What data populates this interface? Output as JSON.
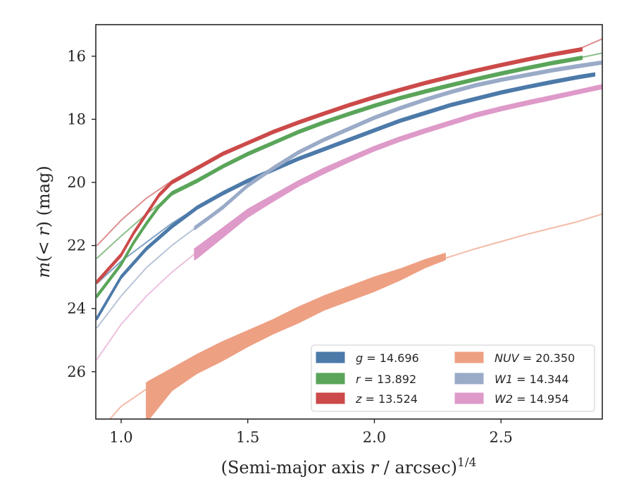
{
  "chart_data": {
    "type": "line",
    "xlabel": "(Semi-major axis r / arcsec)",
    "xlabel_math": {
      "pre": "(Semi-major axis ",
      "var": "r",
      "post": " / arcsec)",
      "sup": "1/4"
    },
    "ylabel": "m(< r) (mag)",
    "ylabel_math": {
      "m": "m",
      "open": "(",
      "lt": "< ",
      "r": "r",
      "close": ")",
      "unit": " (mag)"
    },
    "xlim": [
      0.9,
      2.9
    ],
    "ylim": [
      27.5,
      15.0
    ],
    "y_inverted": true,
    "xticks": [
      1.0,
      1.5,
      2.0,
      2.5
    ],
    "xtick_labels": [
      "1.0",
      "1.5",
      "2.0",
      "2.5"
    ],
    "yticks": [
      16,
      18,
      20,
      22,
      24,
      26
    ],
    "ytick_labels": [
      "16",
      "18",
      "20",
      "22",
      "24",
      "26"
    ],
    "grid": false,
    "legend_position": "lower-right",
    "legend_columns": 2,
    "series": [
      {
        "name": "g = 14.696",
        "label_var": "g",
        "label_val": " = 14.696",
        "color": "#4c7aa9",
        "curve_color": "#4c7aa9",
        "model_x": [
          0.905,
          1.0,
          1.1,
          1.2,
          1.3,
          1.4,
          1.5,
          1.6,
          1.7,
          1.8,
          1.9,
          2.0,
          2.1,
          2.2,
          2.3,
          2.4,
          2.5,
          2.6,
          2.7,
          2.8,
          2.87
        ],
        "model_y": [
          23.2,
          22.5,
          21.9,
          21.3,
          20.8,
          20.35,
          19.95,
          19.6,
          19.25,
          18.95,
          18.65,
          18.35,
          18.05,
          17.8,
          17.55,
          17.35,
          17.15,
          16.98,
          16.82,
          16.67,
          16.58
        ],
        "band_x": [
          0.905,
          1.0,
          1.1,
          1.2,
          1.3,
          1.4,
          1.5,
          1.6,
          1.7,
          1.8,
          1.9,
          2.0,
          2.1,
          2.2,
          2.3,
          2.4,
          2.5,
          2.6,
          2.7,
          2.8,
          2.87
        ],
        "band_y": [
          24.3,
          23.0,
          22.1,
          21.4,
          20.8,
          20.35,
          19.95,
          19.6,
          19.25,
          18.95,
          18.65,
          18.35,
          18.05,
          17.8,
          17.55,
          17.35,
          17.15,
          16.98,
          16.82,
          16.67,
          16.58
        ],
        "band_hw": 0.05
      },
      {
        "name": "r = 13.892",
        "label_var": "r",
        "label_val": " = 13.892",
        "color": "#5aa55a",
        "curve_color": "#5aa55a",
        "model_x": [
          0.905,
          1.0,
          1.1,
          1.2,
          1.3,
          1.4,
          1.5,
          1.6,
          1.7,
          1.8,
          1.9,
          2.0,
          2.1,
          2.2,
          2.3,
          2.4,
          2.5,
          2.6,
          2.7,
          2.8,
          2.9
        ],
        "model_y": [
          22.4,
          21.7,
          21.0,
          20.4,
          19.95,
          19.5,
          19.1,
          18.75,
          18.4,
          18.1,
          17.83,
          17.57,
          17.33,
          17.12,
          16.92,
          16.73,
          16.55,
          16.38,
          16.22,
          16.07,
          15.9
        ],
        "band_x": [
          0.905,
          1.0,
          1.05,
          1.1,
          1.15,
          1.2,
          1.3,
          1.4,
          1.5,
          1.6,
          1.7,
          1.8,
          1.9,
          2.0,
          2.1,
          2.2,
          2.3,
          2.4,
          2.5,
          2.6,
          2.7,
          2.82
        ],
        "band_y": [
          23.6,
          22.6,
          21.9,
          21.3,
          20.75,
          20.35,
          19.95,
          19.5,
          19.1,
          18.75,
          18.4,
          18.1,
          17.83,
          17.57,
          17.33,
          17.12,
          16.92,
          16.73,
          16.55,
          16.38,
          16.22,
          16.05
        ],
        "band_hw": 0.05
      },
      {
        "name": "z = 13.524",
        "label_var": "z",
        "label_val": " = 13.524",
        "color": "#cc4a4a",
        "curve_color": "#d06060",
        "model_x": [
          0.905,
          1.0,
          1.1,
          1.2,
          1.3,
          1.4,
          1.5,
          1.6,
          1.7,
          1.8,
          1.9,
          2.0,
          2.1,
          2.2,
          2.3,
          2.4,
          2.5,
          2.6,
          2.7,
          2.8,
          2.9
        ],
        "model_y": [
          22.0,
          21.2,
          20.5,
          19.95,
          19.5,
          19.1,
          18.75,
          18.4,
          18.1,
          17.82,
          17.55,
          17.3,
          17.07,
          16.85,
          16.65,
          16.46,
          16.28,
          16.11,
          15.95,
          15.8,
          15.45
        ],
        "band_x": [
          0.905,
          1.0,
          1.05,
          1.1,
          1.15,
          1.2,
          1.3,
          1.4,
          1.5,
          1.6,
          1.7,
          1.8,
          1.9,
          2.0,
          2.1,
          2.2,
          2.3,
          2.4,
          2.5,
          2.6,
          2.7,
          2.82
        ],
        "band_y": [
          23.15,
          22.3,
          21.6,
          21.0,
          20.4,
          20.0,
          19.55,
          19.1,
          18.75,
          18.4,
          18.1,
          17.82,
          17.55,
          17.3,
          17.07,
          16.85,
          16.65,
          16.46,
          16.28,
          16.11,
          15.95,
          15.78
        ],
        "band_hw": 0.05
      },
      {
        "name": "NUV = 20.350",
        "label_var": "NUV",
        "label_val": " = 20.350",
        "color": "#eea083",
        "curve_color": "#eea083",
        "model_x": [
          0.9,
          1.0,
          1.2,
          1.4,
          1.6,
          1.8,
          2.0,
          2.2,
          2.4,
          2.6,
          2.8,
          2.9
        ],
        "model_y": [
          28.0,
          27.1,
          26.0,
          25.2,
          24.5,
          23.8,
          23.2,
          22.6,
          22.1,
          21.65,
          21.25,
          21.0
        ],
        "band_x": [
          1.1,
          1.11,
          1.2,
          1.3,
          1.4,
          1.5,
          1.6,
          1.7,
          1.8,
          1.9,
          2.0,
          2.1,
          2.2,
          2.28
        ],
        "band_lo": [
          27.5,
          27.5,
          26.6,
          26.05,
          25.65,
          25.2,
          24.8,
          24.45,
          24.05,
          23.75,
          23.45,
          23.1,
          22.7,
          22.45
        ],
        "band_hi": [
          26.35,
          26.3,
          25.9,
          25.45,
          25.05,
          24.7,
          24.35,
          23.95,
          23.6,
          23.3,
          23.0,
          22.75,
          22.45,
          22.25
        ]
      },
      {
        "name": "W1 = 14.344",
        "label_var": "W1",
        "label_val": " = 14.344",
        "color": "#9aabc8",
        "curve_color": "#9aabc8",
        "model_x": [
          0.905,
          1.0,
          1.1,
          1.2,
          1.3,
          1.4,
          1.5,
          1.6,
          1.7,
          1.8,
          1.9,
          2.0,
          2.1,
          2.2,
          2.3,
          2.4,
          2.5,
          2.6,
          2.7,
          2.8,
          2.9
        ],
        "model_y": [
          24.6,
          23.6,
          22.7,
          22.0,
          21.4,
          20.75,
          20.1,
          19.55,
          19.05,
          18.65,
          18.3,
          17.95,
          17.65,
          17.38,
          17.14,
          16.92,
          16.75,
          16.6,
          16.45,
          16.32,
          16.2
        ],
        "band_x": [
          1.29,
          1.35,
          1.4,
          1.5,
          1.6,
          1.7,
          1.8,
          1.9,
          2.0,
          2.1,
          2.2,
          2.3,
          2.4,
          2.5,
          2.6,
          2.7,
          2.8,
          2.9
        ],
        "band_y": [
          21.45,
          21.1,
          20.8,
          20.1,
          19.55,
          19.05,
          18.65,
          18.3,
          17.95,
          17.65,
          17.38,
          17.14,
          16.92,
          16.75,
          16.6,
          16.45,
          16.32,
          16.2
        ],
        "band_hw": 0.05
      },
      {
        "name": "W2 = 14.954",
        "label_var": "W2",
        "label_val": " = 14.954",
        "color": "#de9ac9",
        "curve_color": "#e4a5cf",
        "model_x": [
          0.905,
          1.0,
          1.1,
          1.2,
          1.3,
          1.4,
          1.5,
          1.6,
          1.7,
          1.8,
          1.9,
          2.0,
          2.1,
          2.2,
          2.3,
          2.4,
          2.5,
          2.6,
          2.7,
          2.8,
          2.9
        ],
        "model_y": [
          25.6,
          24.5,
          23.6,
          22.85,
          22.2,
          21.5,
          20.95,
          20.45,
          20.0,
          19.6,
          19.25,
          18.9,
          18.6,
          18.35,
          18.1,
          17.85,
          17.65,
          17.47,
          17.3,
          17.12,
          16.95
        ],
        "band_x": [
          1.29,
          1.3,
          1.4,
          1.5,
          1.6,
          1.7,
          1.8,
          1.9,
          2.0,
          2.1,
          2.2,
          2.3,
          2.4,
          2.5,
          2.6,
          2.7,
          2.8,
          2.9
        ],
        "band_lo": [
          22.45,
          22.4,
          21.75,
          21.1,
          20.6,
          20.12,
          19.72,
          19.35,
          19.0,
          18.7,
          18.43,
          18.18,
          17.93,
          17.73,
          17.55,
          17.38,
          17.2,
          17.03
        ],
        "band_hi": [
          22.1,
          22.05,
          21.45,
          20.85,
          20.4,
          19.95,
          19.55,
          19.2,
          18.86,
          18.56,
          18.3,
          18.05,
          17.8,
          17.6,
          17.42,
          17.25,
          17.08,
          16.9
        ]
      }
    ]
  }
}
